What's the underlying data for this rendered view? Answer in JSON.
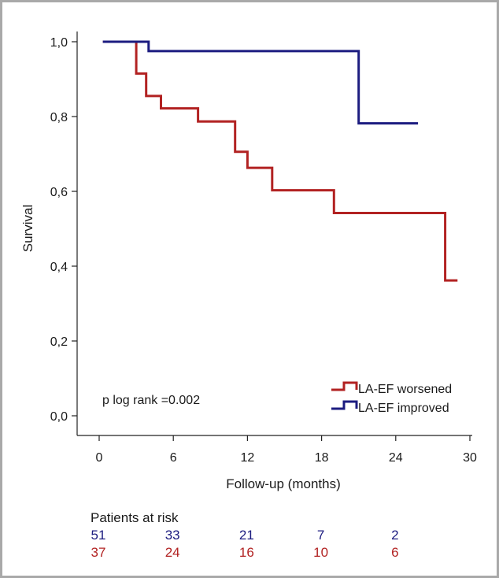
{
  "chart_data": {
    "type": "line",
    "xlabel": "Follow-up (months)",
    "ylabel": "Survival",
    "xlim": [
      0,
      30
    ],
    "ylim": [
      0,
      1.0
    ],
    "x_ticks": [
      0,
      6,
      12,
      18,
      24,
      30
    ],
    "x_tick_labels": [
      "0",
      "6",
      "12",
      "18",
      "24",
      "30"
    ],
    "y_ticks": [
      0,
      0.2,
      0.4,
      0.6,
      0.8,
      1.0
    ],
    "y_tick_labels": [
      "0,0",
      "0,2",
      "0,4",
      "0,6",
      "0,8",
      "1,0"
    ],
    "grid": false,
    "legend_position": "bottom-right",
    "annotation": "p log rank =0.002",
    "series": [
      {
        "name": "LA-EF worsened",
        "color": "#b22222",
        "step": true,
        "points": [
          [
            0.3,
            1.0
          ],
          [
            3.0,
            1.0
          ],
          [
            3.0,
            0.915
          ],
          [
            3.8,
            0.915
          ],
          [
            3.8,
            0.855
          ],
          [
            5.0,
            0.855
          ],
          [
            5.0,
            0.822
          ],
          [
            8.0,
            0.822
          ],
          [
            8.0,
            0.787
          ],
          [
            11.0,
            0.787
          ],
          [
            11.0,
            0.706
          ],
          [
            12.0,
            0.706
          ],
          [
            12.0,
            0.663
          ],
          [
            14.0,
            0.663
          ],
          [
            14.0,
            0.603
          ],
          [
            19.0,
            0.603
          ],
          [
            19.0,
            0.542
          ],
          [
            28.0,
            0.542
          ],
          [
            28.0,
            0.362
          ],
          [
            29.0,
            0.362
          ]
        ]
      },
      {
        "name": "LA-EF improved",
        "color": "#1c1c80",
        "step": true,
        "points": [
          [
            0.3,
            1.0
          ],
          [
            4.0,
            1.0
          ],
          [
            4.0,
            0.975
          ],
          [
            21.0,
            0.975
          ],
          [
            21.0,
            0.782
          ],
          [
            25.8,
            0.782
          ]
        ]
      }
    ]
  },
  "risk_table": {
    "title": "Patients at risk",
    "timepoints": [
      0,
      6,
      12,
      18,
      24
    ],
    "rows": [
      {
        "color": "#1c1c80",
        "values": [
          "51",
          "33",
          "21",
          "7",
          "2"
        ]
      },
      {
        "color": "#b22222",
        "values": [
          "37",
          "24",
          "16",
          "10",
          "6"
        ]
      }
    ]
  }
}
